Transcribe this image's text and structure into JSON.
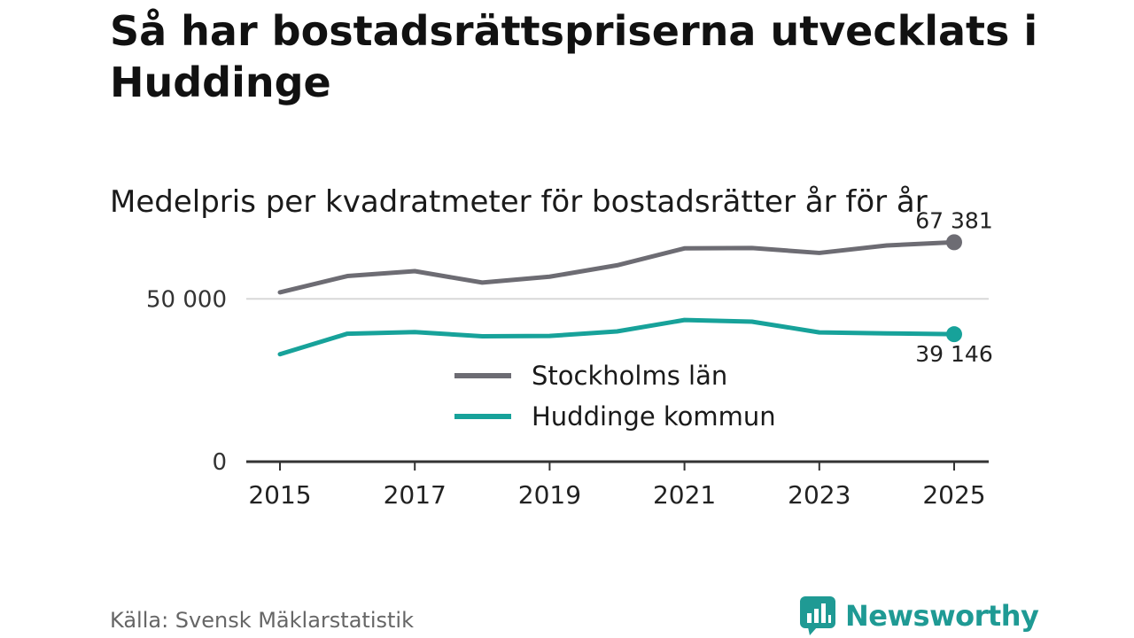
{
  "title": "Så har bostadsrättspriserna utvecklats i Huddinge",
  "subtitle": "Medelpris per kvadratmeter för bostadsrätter år för år",
  "source": "Källa: Svensk Mäklarstatistik",
  "brand": {
    "name": "Newsworthy",
    "icon": "bar-chart-speech-bubble-icon"
  },
  "colors": {
    "stockholm": "#6d6c73",
    "huddinge": "#17a29a",
    "grid": "#d8d8d8",
    "axis": "#333333"
  },
  "chart_data": {
    "type": "line",
    "title": "Medelpris per kvadratmeter för bostadsrätter år för år",
    "x": [
      2015,
      2016,
      2017,
      2018,
      2019,
      2020,
      2021,
      2022,
      2023,
      2024,
      2025
    ],
    "xticks": [
      "2015",
      "2017",
      "2019",
      "2021",
      "2023",
      "2025"
    ],
    "yticks": [
      {
        "value": 0,
        "label": "0"
      },
      {
        "value": 50000,
        "label": "50 000"
      }
    ],
    "ylim": [
      0,
      80000
    ],
    "grid": true,
    "legend_position": "center",
    "series": [
      {
        "name": "Stockholms län",
        "color": "#6d6c73",
        "values": [
          52000,
          57000,
          58500,
          55000,
          56800,
          60300,
          65500,
          65600,
          64100,
          66400,
          67381
        ],
        "end_label": "67 381"
      },
      {
        "name": "Huddinge kommun",
        "color": "#17a29a",
        "values": [
          33000,
          39300,
          39800,
          38500,
          38600,
          40000,
          43500,
          43000,
          39700,
          39400,
          39146
        ],
        "end_label": "39 146"
      }
    ]
  }
}
